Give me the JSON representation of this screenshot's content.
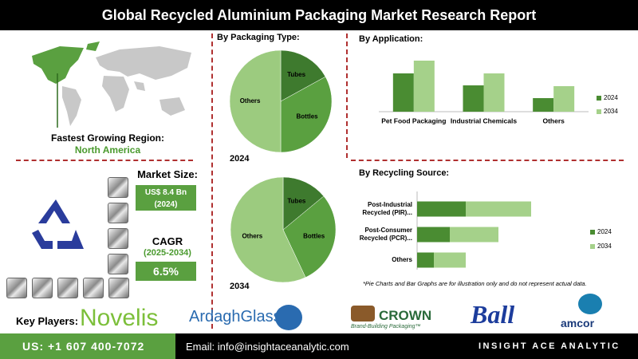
{
  "header": {
    "title": "Global Recycled Aluminium Packaging Market Research Report"
  },
  "region": {
    "label": "Fastest Growing Region:",
    "value": "North America"
  },
  "market_size": {
    "label": "Market Size:",
    "value": "US$ 8.4 Bn",
    "year": "(2024)"
  },
  "cagr": {
    "label": "CAGR",
    "period": "(2025-2034)",
    "value": "6.5%"
  },
  "note": "*Pie Charts and Bar Graphs are for illustration only and do not represent actual data.",
  "key_players": {
    "label": "Key Players:",
    "names": [
      "Novelis",
      "ArdaghGlass",
      "CROWN",
      "Ball",
      "amcor"
    ],
    "tagline": "Brand-Building Packaging™"
  },
  "footer": {
    "phone": "US: +1 607 400-7072",
    "email": "Email: info@insightaceanalytic.com",
    "brand": "INSIGHT ACE ANALYTIC"
  },
  "chart_data": [
    {
      "type": "pie",
      "title": "By Packaging Type:",
      "subtitle": "2024",
      "categories": [
        "Tubes",
        "Bottles",
        "Others"
      ],
      "values": [
        17,
        33,
        50
      ],
      "colors": [
        "#3e7a2e",
        "#5aa040",
        "#9ccb7f"
      ]
    },
    {
      "type": "pie",
      "subtitle": "2034",
      "categories": [
        "Tubes",
        "Bottles",
        "Others"
      ],
      "values": [
        14,
        29,
        57
      ],
      "colors": [
        "#3e7a2e",
        "#5aa040",
        "#9ccb7f"
      ]
    },
    {
      "type": "bar",
      "title": "By Application:",
      "categories": [
        "Pet Food Packaging",
        "Industrial Chemicals",
        "Others"
      ],
      "series": [
        {
          "name": "2024",
          "color": "#4a8c32",
          "values": [
            48,
            33,
            17
          ]
        },
        {
          "name": "2034",
          "color": "#a5d18a",
          "values": [
            64,
            48,
            32
          ]
        }
      ],
      "ylim": [
        0,
        70
      ]
    },
    {
      "type": "hbar_stacked",
      "title": "By Recycling Source:",
      "categories": [
        "Post-Industrial Recycled (PIR)...",
        "Post-Consumer Recycled (PCR)...",
        "Others"
      ],
      "series": [
        {
          "name": "2024",
          "color": "#4a8c32",
          "values": [
            61,
            41,
            21
          ]
        },
        {
          "name": "2034",
          "color": "#a5d18a",
          "values": [
            82,
            61,
            40
          ]
        }
      ],
      "xlim": [
        0,
        200
      ]
    }
  ]
}
